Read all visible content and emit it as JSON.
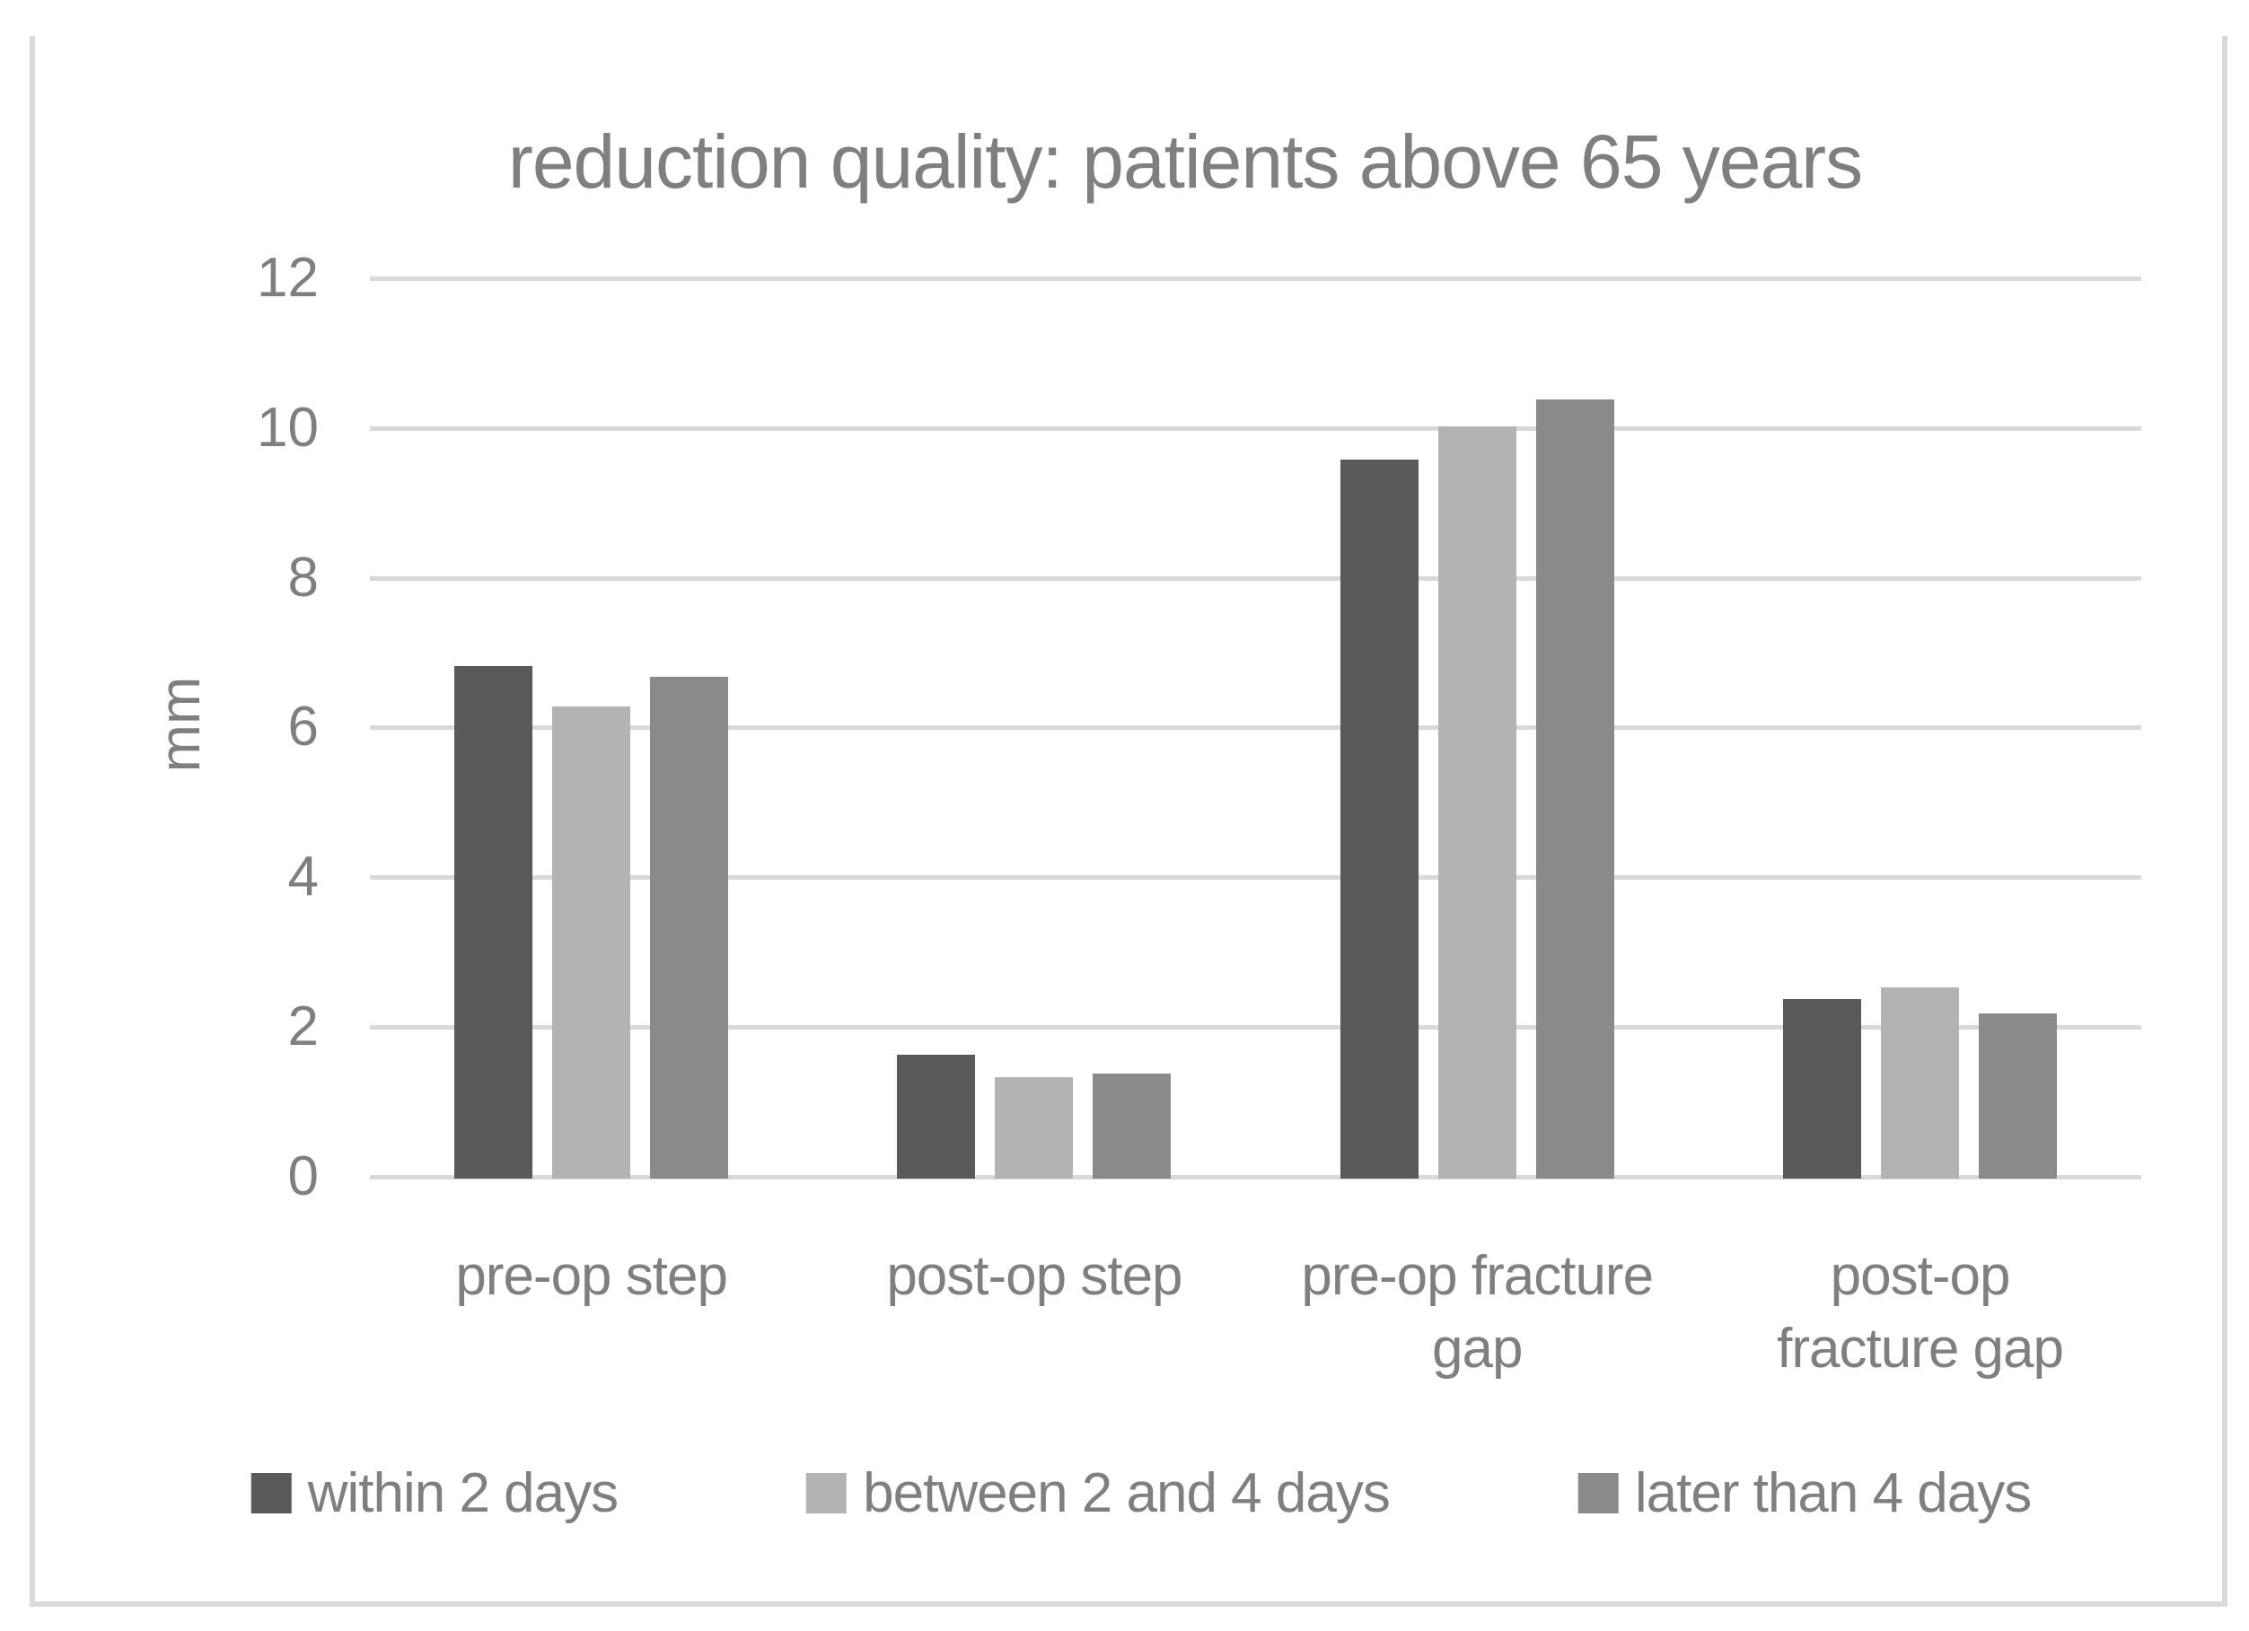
{
  "figure": {
    "frame_color": "#d9d9d9",
    "background": "#ffffff",
    "text_color": "#7f7f7f"
  },
  "chart_data": {
    "type": "bar",
    "title": "reduction quality: patients above 65 years",
    "xlabel": "",
    "ylabel": "mm",
    "ylim": [
      0,
      12
    ],
    "yticks": [
      0,
      2,
      4,
      6,
      8,
      10,
      12
    ],
    "grid": "horizontal",
    "gridline_color": "#d9d9d9",
    "legend_position": "bottom",
    "categories": [
      "pre-op step",
      "post-op step",
      "pre-op fracture gap",
      "post-op fracture gap"
    ],
    "category_label_lines": [
      [
        "pre-op step"
      ],
      [
        "post-op step"
      ],
      [
        "pre-op fracture",
        "gap"
      ],
      [
        "post-op",
        "fracture gap"
      ]
    ],
    "series": [
      {
        "name": "within 2 days",
        "color": "#595959",
        "values": [
          6.85,
          1.65,
          9.6,
          2.4
        ]
      },
      {
        "name": "between 2 and 4 days",
        "color": "#b3b3b3",
        "values": [
          6.3,
          1.35,
          10.05,
          2.55
        ]
      },
      {
        "name": "later than 4 days",
        "color": "#8a8a8a",
        "values": [
          6.7,
          1.4,
          10.4,
          2.2
        ]
      }
    ]
  }
}
